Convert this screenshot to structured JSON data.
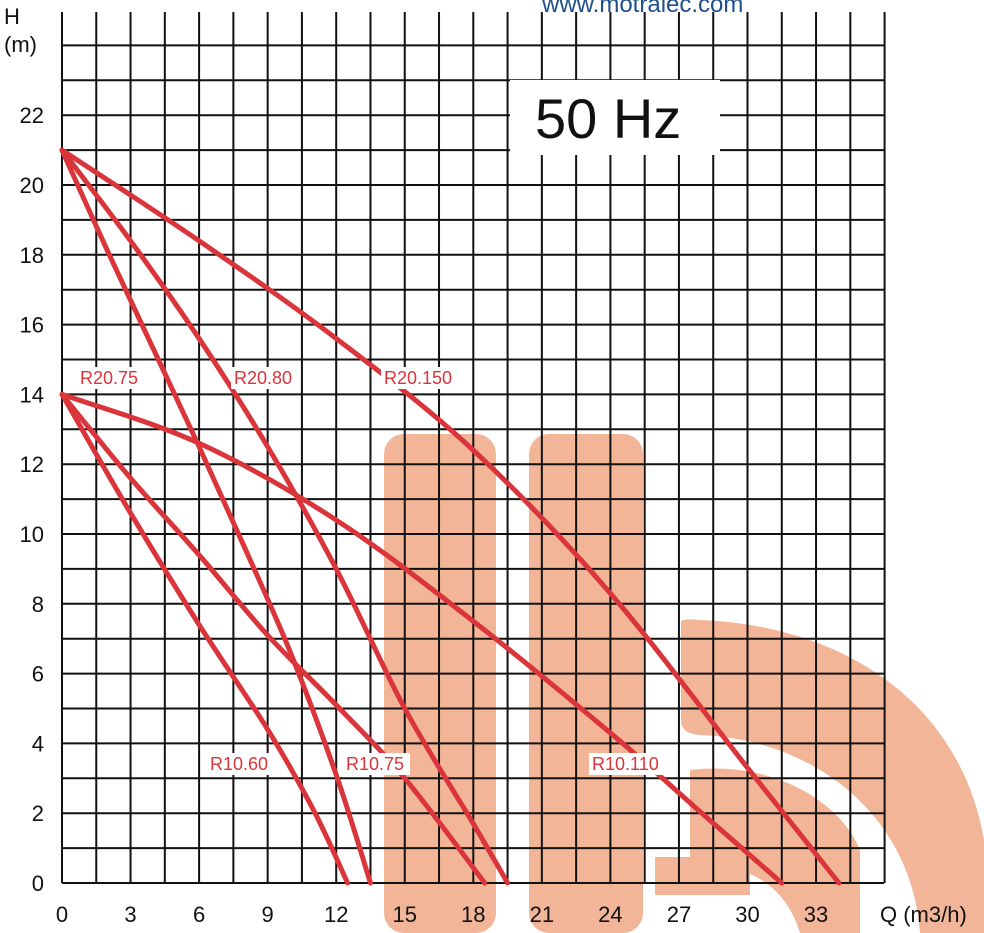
{
  "website": "www.motralec.com",
  "chart_data": {
    "type": "line",
    "title": "50 Hz",
    "xlabel": "Q (m3/h)",
    "ylabel_top": "H",
    "ylabel_unit": "(m)",
    "xlim": [
      0,
      36
    ],
    "ylim": [
      0,
      24.5
    ],
    "x_ticks": [
      0,
      3,
      6,
      9,
      12,
      15,
      18,
      21,
      24,
      27,
      30,
      33
    ],
    "y_ticks": [
      0,
      2,
      4,
      6,
      8,
      10,
      12,
      14,
      16,
      18,
      20,
      22
    ],
    "grid": true,
    "series": [
      {
        "name": "R20.75",
        "x": [
          0,
          2,
          4,
          6,
          8,
          10,
          12,
          13.5
        ],
        "y": [
          21,
          18.1,
          15.3,
          12.5,
          9.6,
          6.6,
          3.1,
          0
        ]
      },
      {
        "name": "R20.80",
        "x": [
          0,
          3,
          6,
          9,
          12,
          15,
          18,
          19.5
        ],
        "y": [
          21,
          18.4,
          15.6,
          12.5,
          9.0,
          5.0,
          1.7,
          0
        ]
      },
      {
        "name": "R20.150",
        "x": [
          0,
          6,
          12,
          18,
          24,
          30,
          34
        ],
        "y": [
          21,
          18.4,
          15.6,
          12.4,
          8.3,
          3.3,
          0
        ]
      },
      {
        "name": "R10.60",
        "x": [
          0,
          3,
          6,
          9,
          11,
          12.5
        ],
        "y": [
          14,
          10.6,
          7.4,
          4.4,
          2.1,
          0
        ]
      },
      {
        "name": "R10.75",
        "x": [
          0,
          3,
          6,
          9,
          12,
          15,
          18.5
        ],
        "y": [
          14,
          11.6,
          9.4,
          7.1,
          5.1,
          3.0,
          0
        ]
      },
      {
        "name": "R10.110",
        "x": [
          0,
          6,
          12,
          18,
          24,
          28,
          31.5
        ],
        "y": [
          14,
          12.6,
          10.4,
          7.5,
          4.3,
          2.0,
          0
        ]
      }
    ]
  },
  "colors": {
    "curve": "#d9353b",
    "grid": "#111111",
    "watermark": "#f3b597",
    "url": "#1f4e8c"
  }
}
